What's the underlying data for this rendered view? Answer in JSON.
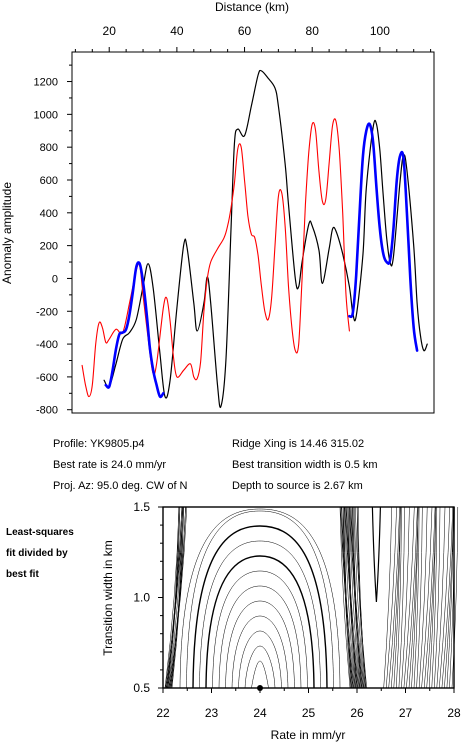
{
  "chart_data": [
    {
      "type": "line",
      "xlabel": "Distance (km)",
      "ylabel": "Anomaly amplitude",
      "xlim": [
        9,
        116
      ],
      "ylim": [
        -820,
        1380
      ],
      "x_ticks": [
        20,
        40,
        60,
        80,
        100
      ],
      "y_ticks": [
        -800,
        -600,
        -400,
        -200,
        0,
        200,
        400,
        600,
        800,
        1000,
        1200
      ],
      "x_axis_position": "top",
      "grid": false,
      "series": [
        {
          "color": "#000000",
          "points": [
            [
              18.5,
              -620
            ],
            [
              20,
              -660
            ],
            [
              22,
              -520
            ],
            [
              24,
              -370
            ],
            [
              26,
              -330
            ],
            [
              28,
              -250
            ],
            [
              30,
              -50
            ],
            [
              31.5,
              90
            ],
            [
              33,
              -60
            ],
            [
              35,
              -460
            ],
            [
              36.5,
              -720
            ],
            [
              38,
              -620
            ],
            [
              40,
              -180
            ],
            [
              42,
              200
            ],
            [
              43,
              190
            ],
            [
              45,
              -150
            ],
            [
              46,
              -320
            ],
            [
              48,
              -150
            ],
            [
              49,
              10
            ],
            [
              50,
              -150
            ],
            [
              52,
              -650
            ],
            [
              53,
              -780
            ],
            [
              54.5,
              -500
            ],
            [
              56,
              300
            ],
            [
              57,
              820
            ],
            [
              58,
              910
            ],
            [
              60,
              870
            ],
            [
              62,
              1050
            ],
            [
              64,
              1240
            ],
            [
              65,
              1265
            ],
            [
              67,
              1220
            ],
            [
              69,
              1160
            ],
            [
              70,
              1050
            ],
            [
              72,
              700
            ],
            [
              73,
              450
            ],
            [
              75,
              0
            ],
            [
              76,
              -50
            ],
            [
              77,
              100
            ],
            [
              79,
              330
            ],
            [
              80,
              320
            ],
            [
              82,
              170
            ],
            [
              83,
              -30
            ],
            [
              85,
              180
            ],
            [
              86,
              300
            ],
            [
              87,
              290
            ],
            [
              89,
              150
            ],
            [
              91,
              -50
            ],
            [
              92,
              -210
            ],
            [
              93,
              -230
            ],
            [
              95,
              150
            ],
            [
              96,
              550
            ],
            [
              98,
              920
            ],
            [
              99,
              940
            ],
            [
              100,
              780
            ],
            [
              101,
              500
            ],
            [
              102,
              250
            ],
            [
              103,
              100
            ],
            [
              104,
              130
            ],
            [
              106,
              600
            ],
            [
              107,
              750
            ],
            [
              108,
              660
            ],
            [
              110,
              200
            ],
            [
              111,
              -150
            ],
            [
              112,
              -350
            ],
            [
              113,
              -440
            ],
            [
              114,
              -400
            ]
          ]
        },
        {
          "color": "#ff0000",
          "points": [
            [
              12,
              -530
            ],
            [
              13,
              -650
            ],
            [
              14,
              -720
            ],
            [
              15,
              -650
            ],
            [
              16,
              -400
            ],
            [
              17,
              -270
            ],
            [
              18,
              -300
            ],
            [
              19,
              -390
            ],
            [
              20,
              -370
            ],
            [
              22,
              -310
            ],
            [
              24,
              -330
            ],
            [
              26,
              -150
            ],
            [
              28,
              50
            ],
            [
              29,
              80
            ],
            [
              30,
              -100
            ],
            [
              32,
              -450
            ],
            [
              33,
              -580
            ],
            [
              34,
              -520
            ],
            [
              36,
              -180
            ],
            [
              37,
              -120
            ],
            [
              38,
              -260
            ],
            [
              39,
              -480
            ],
            [
              40,
              -600
            ],
            [
              42,
              -560
            ],
            [
              44,
              -520
            ],
            [
              45,
              -600
            ],
            [
              46,
              -610
            ],
            [
              47,
              -510
            ],
            [
              48,
              -200
            ],
            [
              49,
              0
            ],
            [
              50,
              100
            ],
            [
              52,
              180
            ],
            [
              54,
              250
            ],
            [
              55,
              320
            ],
            [
              56,
              430
            ],
            [
              57,
              580
            ],
            [
              58,
              790
            ],
            [
              59,
              800
            ],
            [
              60,
              600
            ],
            [
              61,
              380
            ],
            [
              62,
              270
            ],
            [
              63,
              250
            ],
            [
              64,
              140
            ],
            [
              65,
              -50
            ],
            [
              66,
              -200
            ],
            [
              67,
              -250
            ],
            [
              68,
              -120
            ],
            [
              69,
              200
            ],
            [
              70,
              500
            ],
            [
              71,
              520
            ],
            [
              72,
              320
            ],
            [
              73,
              -50
            ],
            [
              74,
              -300
            ],
            [
              75,
              -440
            ],
            [
              76,
              -400
            ],
            [
              77,
              0
            ],
            [
              78,
              450
            ],
            [
              79,
              770
            ],
            [
              80,
              940
            ],
            [
              81,
              900
            ],
            [
              82,
              650
            ],
            [
              83,
              470
            ],
            [
              84,
              480
            ],
            [
              85,
              700
            ],
            [
              86,
              930
            ],
            [
              87,
              960
            ],
            [
              88,
              780
            ],
            [
              89,
              400
            ],
            [
              90,
              -100
            ],
            [
              91,
              -320
            ]
          ]
        },
        {
          "color": "#0000ff",
          "points": [
            [
              19,
              -650
            ],
            [
              20,
              -660
            ],
            [
              21,
              -560
            ],
            [
              22,
              -430
            ],
            [
              23,
              -340
            ],
            [
              24,
              -330
            ],
            [
              25,
              -310
            ],
            [
              26,
              -220
            ],
            [
              27,
              -80
            ],
            [
              28,
              70
            ],
            [
              29,
              90
            ],
            [
              30,
              -20
            ],
            [
              31,
              -200
            ],
            [
              32,
              -420
            ],
            [
              33,
              -560
            ],
            [
              34,
              -650
            ],
            [
              35,
              -720
            ],
            [
              36,
              -700
            ]
          ]
        },
        {
          "color": "#0000ff",
          "points": [
            [
              91,
              -230
            ],
            [
              92,
              -210
            ],
            [
              93,
              20
            ],
            [
              94,
              400
            ],
            [
              95,
              750
            ],
            [
              96,
              900
            ],
            [
              97,
              940
            ],
            [
              98,
              830
            ],
            [
              99,
              550
            ],
            [
              100,
              300
            ],
            [
              101,
              150
            ],
            [
              102,
              100
            ],
            [
              103,
              110
            ],
            [
              104,
              300
            ],
            [
              105,
              600
            ],
            [
              106,
              750
            ],
            [
              107,
              730
            ],
            [
              108,
              400
            ],
            [
              109,
              0
            ],
            [
              110,
              -300
            ],
            [
              111,
              -440
            ]
          ]
        }
      ]
    },
    {
      "type": "contour",
      "xlabel": "Rate in mm/yr",
      "ylabel": "Transition width in km",
      "xlim": [
        22,
        28
      ],
      "ylim": [
        0.5,
        1.5
      ],
      "x_ticks": [
        22,
        23,
        24,
        25,
        26,
        27,
        28
      ],
      "y_ticks": [
        0.5,
        1.0,
        1.5
      ],
      "y_tick_labels": [
        "0.5",
        "1.0",
        "1.5"
      ],
      "best_fit_marker": [
        24.0,
        0.5
      ]
    }
  ],
  "info": {
    "profile": "Profile: YK9805.p4",
    "best_rate": "Best rate is 24.0 mm/yr",
    "proj_az": "Proj. Az: 95.0 deg. CW of N",
    "ridge_xing": "Ridge Xing is 14.46 315.02",
    "best_transition": "Best transition width is 0.5 km",
    "depth": "Depth to source is   2.67 km"
  },
  "side_label": {
    "line1": "Least-squares",
    "line2": "fit divided by",
    "line3": "best fit"
  }
}
